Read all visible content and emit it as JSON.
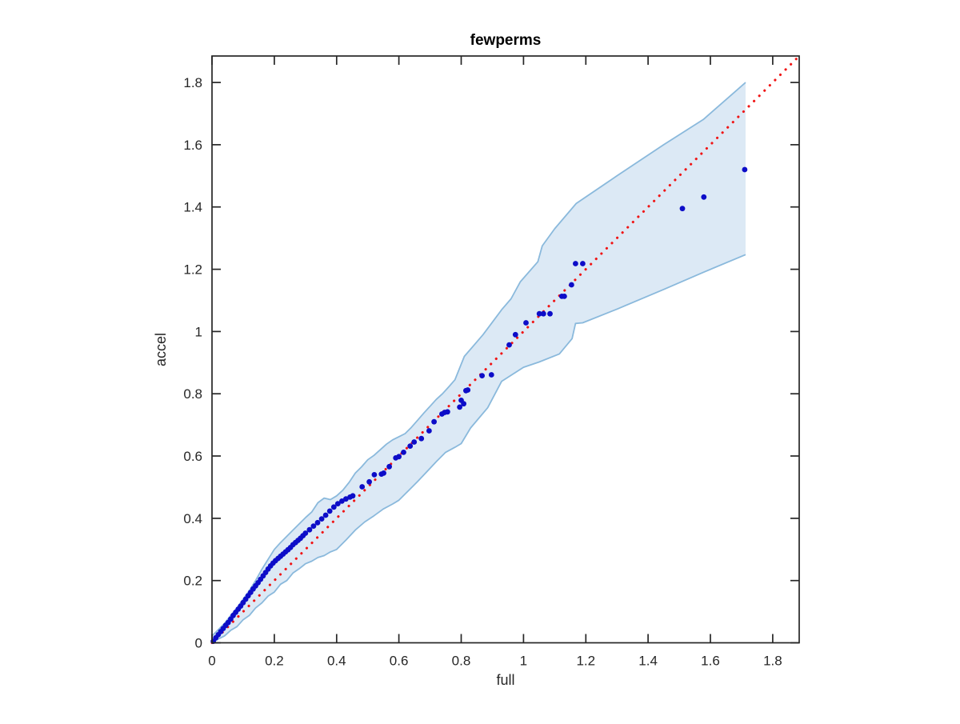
{
  "figure": {
    "background": "#ffffff"
  },
  "chart_data": {
    "type": "scatter",
    "title": "fewperms",
    "xlabel": "full",
    "ylabel": "accel",
    "xlim": [
      0,
      1.885
    ],
    "ylim": [
      0,
      1.885
    ],
    "grid": false,
    "legend": null,
    "frame_color": "#262626",
    "text_color": "#262626",
    "xticks": {
      "values": [
        0,
        0.2,
        0.4,
        0.6,
        0.8,
        1.0,
        1.2,
        1.4,
        1.6,
        1.8
      ],
      "labels": [
        "0",
        "0.2",
        "0.4",
        "0.6",
        "0.8",
        "1",
        "1.2",
        "1.4",
        "1.6",
        "1.8"
      ]
    },
    "yticks": {
      "values": [
        0,
        0.2,
        0.4,
        0.6,
        0.8,
        1.0,
        1.2,
        1.4,
        1.6,
        1.8
      ],
      "labels": [
        "0",
        "0.2",
        "0.4",
        "0.6",
        "0.8",
        "1",
        "1.2",
        "1.4",
        "1.6",
        "1.8"
      ]
    },
    "identity_line": {
      "style": "dotted",
      "color": "#f01515",
      "from": [
        0,
        0
      ],
      "to": [
        1.885,
        1.885
      ]
    },
    "band": {
      "label": "confidence-band",
      "fill": "#dce9f5",
      "edge_color": "#8ab9dc",
      "lower": [
        [
          0.0,
          0.0
        ],
        [
          0.02,
          0.012
        ],
        [
          0.04,
          0.022
        ],
        [
          0.06,
          0.04
        ],
        [
          0.08,
          0.052
        ],
        [
          0.1,
          0.074
        ],
        [
          0.12,
          0.088
        ],
        [
          0.14,
          0.112
        ],
        [
          0.16,
          0.128
        ],
        [
          0.18,
          0.15
        ],
        [
          0.2,
          0.163
        ],
        [
          0.22,
          0.188
        ],
        [
          0.24,
          0.2
        ],
        [
          0.26,
          0.224
        ],
        [
          0.28,
          0.238
        ],
        [
          0.3,
          0.254
        ],
        [
          0.32,
          0.262
        ],
        [
          0.34,
          0.274
        ],
        [
          0.36,
          0.28
        ],
        [
          0.38,
          0.292
        ],
        [
          0.4,
          0.3
        ],
        [
          0.43,
          0.33
        ],
        [
          0.46,
          0.362
        ],
        [
          0.49,
          0.388
        ],
        [
          0.52,
          0.408
        ],
        [
          0.55,
          0.43
        ],
        [
          0.58,
          0.446
        ],
        [
          0.6,
          0.458
        ],
        [
          0.63,
          0.488
        ],
        [
          0.66,
          0.518
        ],
        [
          0.69,
          0.55
        ],
        [
          0.72,
          0.582
        ],
        [
          0.75,
          0.612
        ],
        [
          0.78,
          0.628
        ],
        [
          0.8,
          0.64
        ],
        [
          0.83,
          0.69
        ],
        [
          0.885,
          0.755
        ],
        [
          0.93,
          0.84
        ],
        [
          1.0,
          0.885
        ],
        [
          1.05,
          0.902
        ],
        [
          1.115,
          0.928
        ],
        [
          1.156,
          0.977
        ],
        [
          1.167,
          1.026
        ],
        [
          1.19,
          1.028
        ],
        [
          1.3,
          1.072
        ],
        [
          1.45,
          1.135
        ],
        [
          1.577,
          1.19
        ],
        [
          1.713,
          1.247
        ]
      ],
      "upper": [
        [
          0.0,
          0.022
        ],
        [
          0.02,
          0.042
        ],
        [
          0.04,
          0.062
        ],
        [
          0.06,
          0.088
        ],
        [
          0.08,
          0.112
        ],
        [
          0.1,
          0.14
        ],
        [
          0.12,
          0.168
        ],
        [
          0.14,
          0.2
        ],
        [
          0.16,
          0.236
        ],
        [
          0.18,
          0.268
        ],
        [
          0.2,
          0.3
        ],
        [
          0.22,
          0.322
        ],
        [
          0.24,
          0.342
        ],
        [
          0.26,
          0.362
        ],
        [
          0.28,
          0.382
        ],
        [
          0.3,
          0.402
        ],
        [
          0.32,
          0.42
        ],
        [
          0.34,
          0.45
        ],
        [
          0.36,
          0.465
        ],
        [
          0.38,
          0.46
        ],
        [
          0.4,
          0.472
        ],
        [
          0.42,
          0.49
        ],
        [
          0.44,
          0.515
        ],
        [
          0.46,
          0.545
        ],
        [
          0.48,
          0.565
        ],
        [
          0.5,
          0.588
        ],
        [
          0.52,
          0.602
        ],
        [
          0.54,
          0.62
        ],
        [
          0.56,
          0.638
        ],
        [
          0.58,
          0.652
        ],
        [
          0.6,
          0.662
        ],
        [
          0.62,
          0.672
        ],
        [
          0.64,
          0.692
        ],
        [
          0.66,
          0.715
        ],
        [
          0.68,
          0.738
        ],
        [
          0.7,
          0.76
        ],
        [
          0.72,
          0.782
        ],
        [
          0.74,
          0.8
        ],
        [
          0.76,
          0.822
        ],
        [
          0.78,
          0.845
        ],
        [
          0.81,
          0.92
        ],
        [
          0.84,
          0.955
        ],
        [
          0.87,
          0.99
        ],
        [
          0.9,
          1.03
        ],
        [
          0.93,
          1.07
        ],
        [
          0.96,
          1.105
        ],
        [
          0.99,
          1.16
        ],
        [
          1.046,
          1.224
        ],
        [
          1.06,
          1.275
        ],
        [
          1.1,
          1.33
        ],
        [
          1.169,
          1.411
        ],
        [
          1.3,
          1.5
        ],
        [
          1.45,
          1.6
        ],
        [
          1.577,
          1.681
        ],
        [
          1.713,
          1.8
        ]
      ]
    },
    "scatter": {
      "label": "accel-vs-full-quantiles",
      "color": "#0d0dc8",
      "marker_radius_px": 3.4,
      "points": [
        [
          0.004,
          0.005
        ],
        [
          0.012,
          0.016
        ],
        [
          0.02,
          0.026
        ],
        [
          0.028,
          0.036
        ],
        [
          0.036,
          0.046
        ],
        [
          0.044,
          0.056
        ],
        [
          0.052,
          0.065
        ],
        [
          0.06,
          0.076
        ],
        [
          0.068,
          0.088
        ],
        [
          0.076,
          0.098
        ],
        [
          0.084,
          0.108
        ],
        [
          0.092,
          0.118
        ],
        [
          0.1,
          0.129
        ],
        [
          0.108,
          0.14
        ],
        [
          0.116,
          0.151
        ],
        [
          0.124,
          0.162
        ],
        [
          0.132,
          0.173
        ],
        [
          0.14,
          0.183
        ],
        [
          0.148,
          0.193
        ],
        [
          0.156,
          0.204
        ],
        [
          0.164,
          0.215
        ],
        [
          0.172,
          0.226
        ],
        [
          0.18,
          0.237
        ],
        [
          0.188,
          0.247
        ],
        [
          0.196,
          0.256
        ],
        [
          0.204,
          0.264
        ],
        [
          0.212,
          0.271
        ],
        [
          0.22,
          0.278
        ],
        [
          0.228,
          0.285
        ],
        [
          0.236,
          0.292
        ],
        [
          0.244,
          0.299
        ],
        [
          0.252,
          0.306
        ],
        [
          0.26,
          0.315
        ],
        [
          0.268,
          0.322
        ],
        [
          0.276,
          0.329
        ],
        [
          0.284,
          0.336
        ],
        [
          0.292,
          0.344
        ],
        [
          0.3,
          0.352
        ],
        [
          0.313,
          0.363
        ],
        [
          0.326,
          0.375
        ],
        [
          0.339,
          0.386
        ],
        [
          0.352,
          0.398
        ],
        [
          0.365,
          0.41
        ],
        [
          0.378,
          0.423
        ],
        [
          0.391,
          0.436
        ],
        [
          0.404,
          0.447
        ],
        [
          0.417,
          0.455
        ],
        [
          0.43,
          0.462
        ],
        [
          0.443,
          0.468
        ],
        [
          0.452,
          0.472
        ],
        [
          0.482,
          0.501
        ],
        [
          0.505,
          0.517
        ],
        [
          0.521,
          0.54
        ],
        [
          0.544,
          0.542
        ],
        [
          0.551,
          0.545
        ],
        [
          0.569,
          0.566
        ],
        [
          0.59,
          0.594
        ],
        [
          0.6,
          0.598
        ],
        [
          0.615,
          0.612
        ],
        [
          0.636,
          0.632
        ],
        [
          0.649,
          0.645
        ],
        [
          0.672,
          0.656
        ],
        [
          0.697,
          0.681
        ],
        [
          0.713,
          0.71
        ],
        [
          0.738,
          0.735
        ],
        [
          0.747,
          0.74
        ],
        [
          0.756,
          0.742
        ],
        [
          0.795,
          0.757
        ],
        [
          0.8,
          0.779
        ],
        [
          0.808,
          0.768
        ],
        [
          0.815,
          0.81
        ],
        [
          0.821,
          0.812
        ],
        [
          0.867,
          0.858
        ],
        [
          0.897,
          0.861
        ],
        [
          0.954,
          0.957
        ],
        [
          0.974,
          0.99
        ],
        [
          1.008,
          1.028
        ],
        [
          1.051,
          1.057
        ],
        [
          1.064,
          1.057
        ],
        [
          1.085,
          1.057
        ],
        [
          1.123,
          1.113
        ],
        [
          1.131,
          1.113
        ],
        [
          1.154,
          1.15
        ],
        [
          1.167,
          1.218
        ],
        [
          1.19,
          1.218
        ],
        [
          1.51,
          1.395
        ],
        [
          1.579,
          1.432
        ],
        [
          1.71,
          1.52
        ]
      ]
    }
  }
}
